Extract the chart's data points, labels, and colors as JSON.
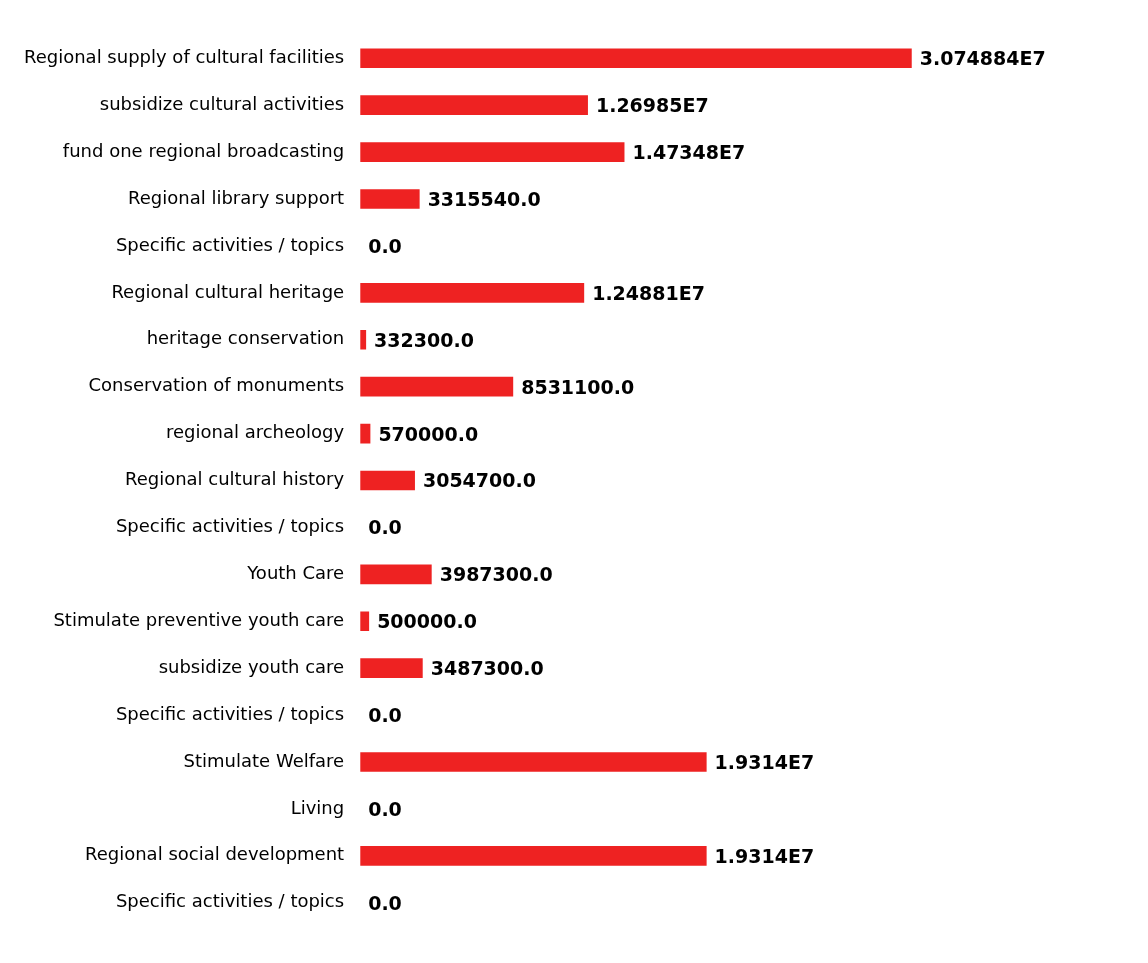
{
  "chart_data": {
    "type": "bar",
    "orientation": "horizontal",
    "color": "#ee2222",
    "data_labels": true,
    "tick_labels": "y",
    "grid": false,
    "legend": false,
    "categories": [
      "Regional supply of cultural facilities",
      "subsidize cultural activities",
      "fund one regional broadcasting",
      "Regional library support",
      "Specific activities / topics",
      "Regional cultural heritage",
      "heritage conservation",
      "Conservation of monuments",
      "regional archeology",
      "Regional cultural history",
      "Specific activities / topics",
      "Youth Care",
      "Stimulate preventive youth care",
      "subsidize youth care",
      "Specific activities / topics",
      "Stimulate Welfare",
      "Living",
      "Regional social development",
      "Specific activities / topics"
    ],
    "values": [
      30748840,
      12698500,
      14734800,
      3315540,
      0,
      12488100,
      332300,
      8531100,
      570000,
      3054700,
      0,
      3987300,
      500000,
      3487300,
      0,
      19314000,
      0,
      19314000,
      0
    ],
    "value_labels": [
      "3.074884E7",
      "1.26985E7",
      "1.47348E7",
      "3315540.0",
      "0.0",
      "1.24881E7",
      "332300.0",
      "8531100.0",
      "570000.0",
      "3054700.0",
      "0.0",
      "3987300.0",
      "500000.0",
      "3487300.0",
      "0.0",
      "1.9314E7",
      "0.0",
      "1.9314E7",
      "0.0"
    ]
  }
}
